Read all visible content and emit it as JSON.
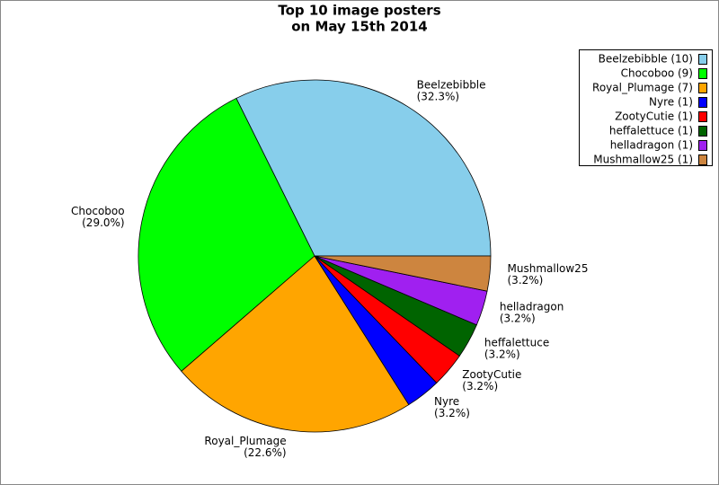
{
  "chart_data": {
    "type": "pie",
    "title": [
      "Top 10 image posters",
      "on May 15th 2014"
    ],
    "categories": [
      "Beelzebibble",
      "Chocoboo",
      "Royal_Plumage",
      "Nyre",
      "ZootyCutie",
      "heffalettuce",
      "helladragon",
      "Mushmallow25"
    ],
    "values": [
      32.3,
      29.0,
      22.6,
      3.2,
      3.2,
      3.2,
      3.2,
      3.2
    ],
    "value_labels": [
      "(32.3%)",
      "(29.0%)",
      "(22.6%)",
      "(3.2%)",
      "(3.2%)",
      "(3.2%)",
      "(3.2%)",
      "(3.2%)"
    ],
    "colors": [
      "#87ceeb",
      "#00ff00",
      "#ffa500",
      "#0000ff",
      "#ff0000",
      "#006400",
      "#a020f0",
      "#cd853f"
    ],
    "legend": {
      "position": "upper right",
      "labels": [
        "Beelzebibble (10)",
        "Chocoboo (9)",
        "Royal_Plumage (7)",
        "Nyre (1)",
        "ZootyCutie (1)",
        "heffalettuce (1)",
        "helladragon (1)",
        "Mushmallow25 (1)"
      ]
    }
  }
}
